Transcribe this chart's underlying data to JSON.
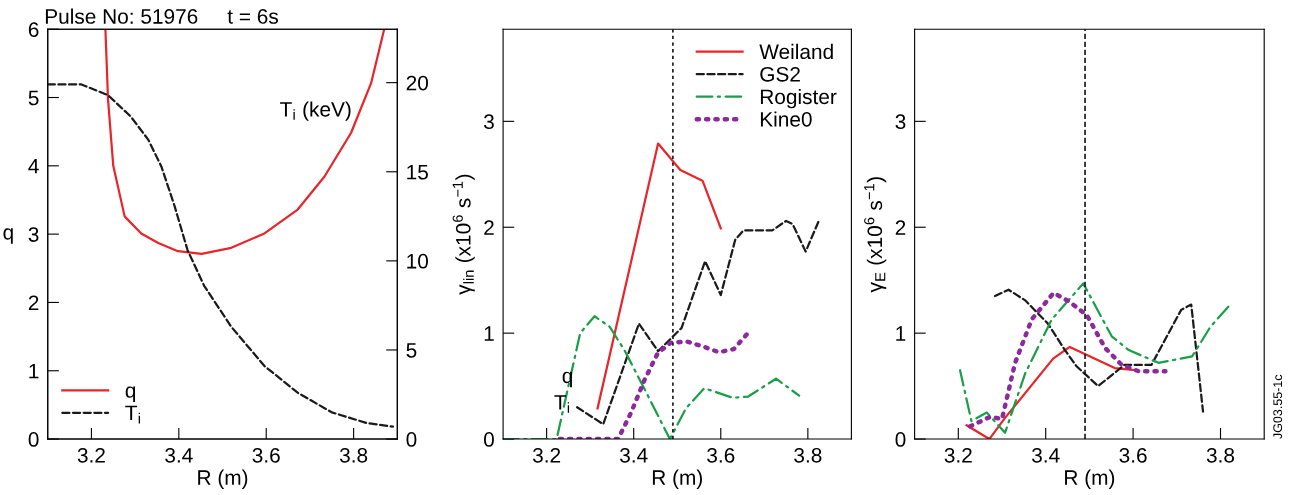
{
  "chart_data": [
    {
      "type": "line",
      "title": "Pulse No: 51976     t = 6s",
      "xlabel": "R (m)",
      "ylabel": "q",
      "y2label": "T$_{i}$ (keV)",
      "xlim": [
        3.1,
        3.9
      ],
      "xticks": [
        3.2,
        3.4,
        3.6,
        3.8
      ],
      "ylim": [
        0,
        6
      ],
      "yticks": [
        0,
        1,
        2,
        3,
        4,
        5,
        6
      ],
      "y2lim": [
        0,
        23
      ],
      "y2ticks": [
        0,
        5,
        10,
        15,
        20
      ],
      "legend": "bottom left",
      "grid": false,
      "series": [
        {
          "name": "q",
          "color": "#e8262a",
          "line_style": "solid",
          "x": [
            3.232,
            3.238,
            3.25,
            3.276,
            3.314,
            3.353,
            3.398,
            3.452,
            3.52,
            3.596,
            3.672,
            3.733,
            3.794,
            3.84,
            3.87
          ],
          "values": [
            6,
            4.97,
            4.0,
            3.26,
            3.01,
            2.87,
            2.75,
            2.71,
            2.8,
            3.01,
            3.36,
            3.84,
            4.48,
            5.21,
            6
          ]
        },
        {
          "name": "T$_{i}$",
          "color": "#1a1a1a",
          "line_style": "dashed",
          "axis": "y2",
          "x": [
            3.1,
            3.177,
            3.238,
            3.29,
            3.33,
            3.36,
            3.39,
            3.42,
            3.458,
            3.52,
            3.596,
            3.672,
            3.75,
            3.83,
            3.89
          ],
          "values": [
            19.9,
            19.9,
            19.3,
            18.1,
            16.8,
            15.3,
            13.1,
            10.6,
            8.6,
            6.3,
            4.1,
            2.6,
            1.5,
            0.9,
            0.7
          ]
        }
      ]
    },
    {
      "type": "line",
      "xlabel": "R (m)",
      "ylabel": "γ$_{lin}$ (x10$^{6}$ s$^{−1}$)",
      "xlim": [
        3.1,
        3.9
      ],
      "xticks": [
        3.2,
        3.4,
        3.6,
        3.8
      ],
      "ylim": [
        0,
        3.87
      ],
      "yticks": [
        0,
        1,
        2,
        3
      ],
      "legend": "top right",
      "grid": false,
      "ref_lines": [
        {
          "axis": "x",
          "value": 3.49,
          "color": "#1a1a1a",
          "line_style": "dotted"
        }
      ],
      "annotations": [
        "q",
        "T$_{i}$"
      ],
      "series": [
        {
          "name": "Weiland",
          "color": "#e8262a",
          "line_style": "solid",
          "x": [
            3.317,
            3.456,
            3.507,
            3.558,
            3.6
          ],
          "values": [
            0.29,
            2.79,
            2.54,
            2.44,
            1.99
          ]
        },
        {
          "name": "GS2",
          "color": "#1a1a1a",
          "line_style": "dashed",
          "x": [
            3.27,
            3.33,
            3.412,
            3.456,
            3.51,
            3.564,
            3.6,
            3.633,
            3.652,
            3.718,
            3.75,
            3.765,
            3.795,
            3.824
          ],
          "values": [
            0.3,
            0.14,
            1.09,
            0.83,
            1.05,
            1.68,
            1.36,
            1.88,
            1.97,
            1.97,
            2.06,
            2.03,
            1.77,
            2.05
          ]
        },
        {
          "name": "Rogister",
          "color": "#1a9e48",
          "line_style": "dashdot",
          "x": [
            3.1,
            3.223,
            3.277,
            3.31,
            3.345,
            3.38,
            3.43,
            3.483,
            3.52,
            3.562,
            3.627,
            3.662,
            3.727,
            3.78
          ],
          "values": [
            0,
            0,
            1.0,
            1.16,
            1.06,
            0.83,
            0.43,
            0,
            0.29,
            0.48,
            0.39,
            0.4,
            0.57,
            0.41
          ]
        },
        {
          "name": "Kine0",
          "color": "#8b2a9b",
          "line_style": "dotted",
          "x": [
            3.23,
            3.364,
            3.394,
            3.425,
            3.455,
            3.485,
            3.523,
            3.562,
            3.596,
            3.63,
            3.662
          ],
          "values": [
            0,
            0,
            0.25,
            0.56,
            0.81,
            0.91,
            0.92,
            0.87,
            0.82,
            0.85,
            1.0
          ]
        }
      ]
    },
    {
      "type": "line",
      "xlabel": "R (m)",
      "ylabel": "γ$_{E}$ (x10$^{6}$ s$^{−1}$)",
      "xlim": [
        3.1,
        3.9
      ],
      "xticks": [
        3.2,
        3.4,
        3.6,
        3.8
      ],
      "ylim": [
        0,
        3.87
      ],
      "yticks": [
        0,
        1,
        2,
        3
      ],
      "grid": false,
      "ref_lines": [
        {
          "axis": "x",
          "value": 3.49,
          "color": "#1a1a1a",
          "line_style": "dashed"
        }
      ],
      "annotations": [
        "JG03.55-1c"
      ],
      "series": [
        {
          "color": "#e8262a",
          "line_style": "solid",
          "x": [
            3.219,
            3.271,
            3.307,
            3.417,
            3.455,
            3.558,
            3.608
          ],
          "values": [
            0.13,
            0,
            0.2,
            0.76,
            0.87,
            0.67,
            0.65
          ]
        },
        {
          "color": "#1a1a1a",
          "line_style": "dashed",
          "x": [
            3.284,
            3.315,
            3.353,
            3.405,
            3.444,
            3.47,
            3.52,
            3.58,
            3.642,
            3.71,
            3.733,
            3.76
          ],
          "values": [
            1.35,
            1.41,
            1.31,
            1.09,
            0.84,
            0.69,
            0.5,
            0.7,
            0.7,
            1.22,
            1.27,
            0.26
          ]
        },
        {
          "color": "#1a9e48",
          "line_style": "dashdot",
          "x": [
            3.204,
            3.23,
            3.265,
            3.307,
            3.353,
            3.414,
            3.486,
            3.551,
            3.59,
            3.658,
            3.735,
            3.777,
            3.818
          ],
          "values": [
            0.65,
            0.17,
            0.25,
            0.06,
            0.62,
            1.13,
            1.47,
            0.97,
            0.84,
            0.72,
            0.78,
            1.06,
            1.25
          ]
        },
        {
          "color": "#8b2a9b",
          "line_style": "dotted",
          "x": [
            3.227,
            3.273,
            3.3,
            3.33,
            3.368,
            3.418,
            3.453,
            3.494,
            3.536,
            3.574,
            3.613,
            3.674
          ],
          "values": [
            0.12,
            0.21,
            0.19,
            0.72,
            1.13,
            1.38,
            1.3,
            1.17,
            0.86,
            0.7,
            0.64,
            0.64
          ]
        }
      ]
    }
  ]
}
